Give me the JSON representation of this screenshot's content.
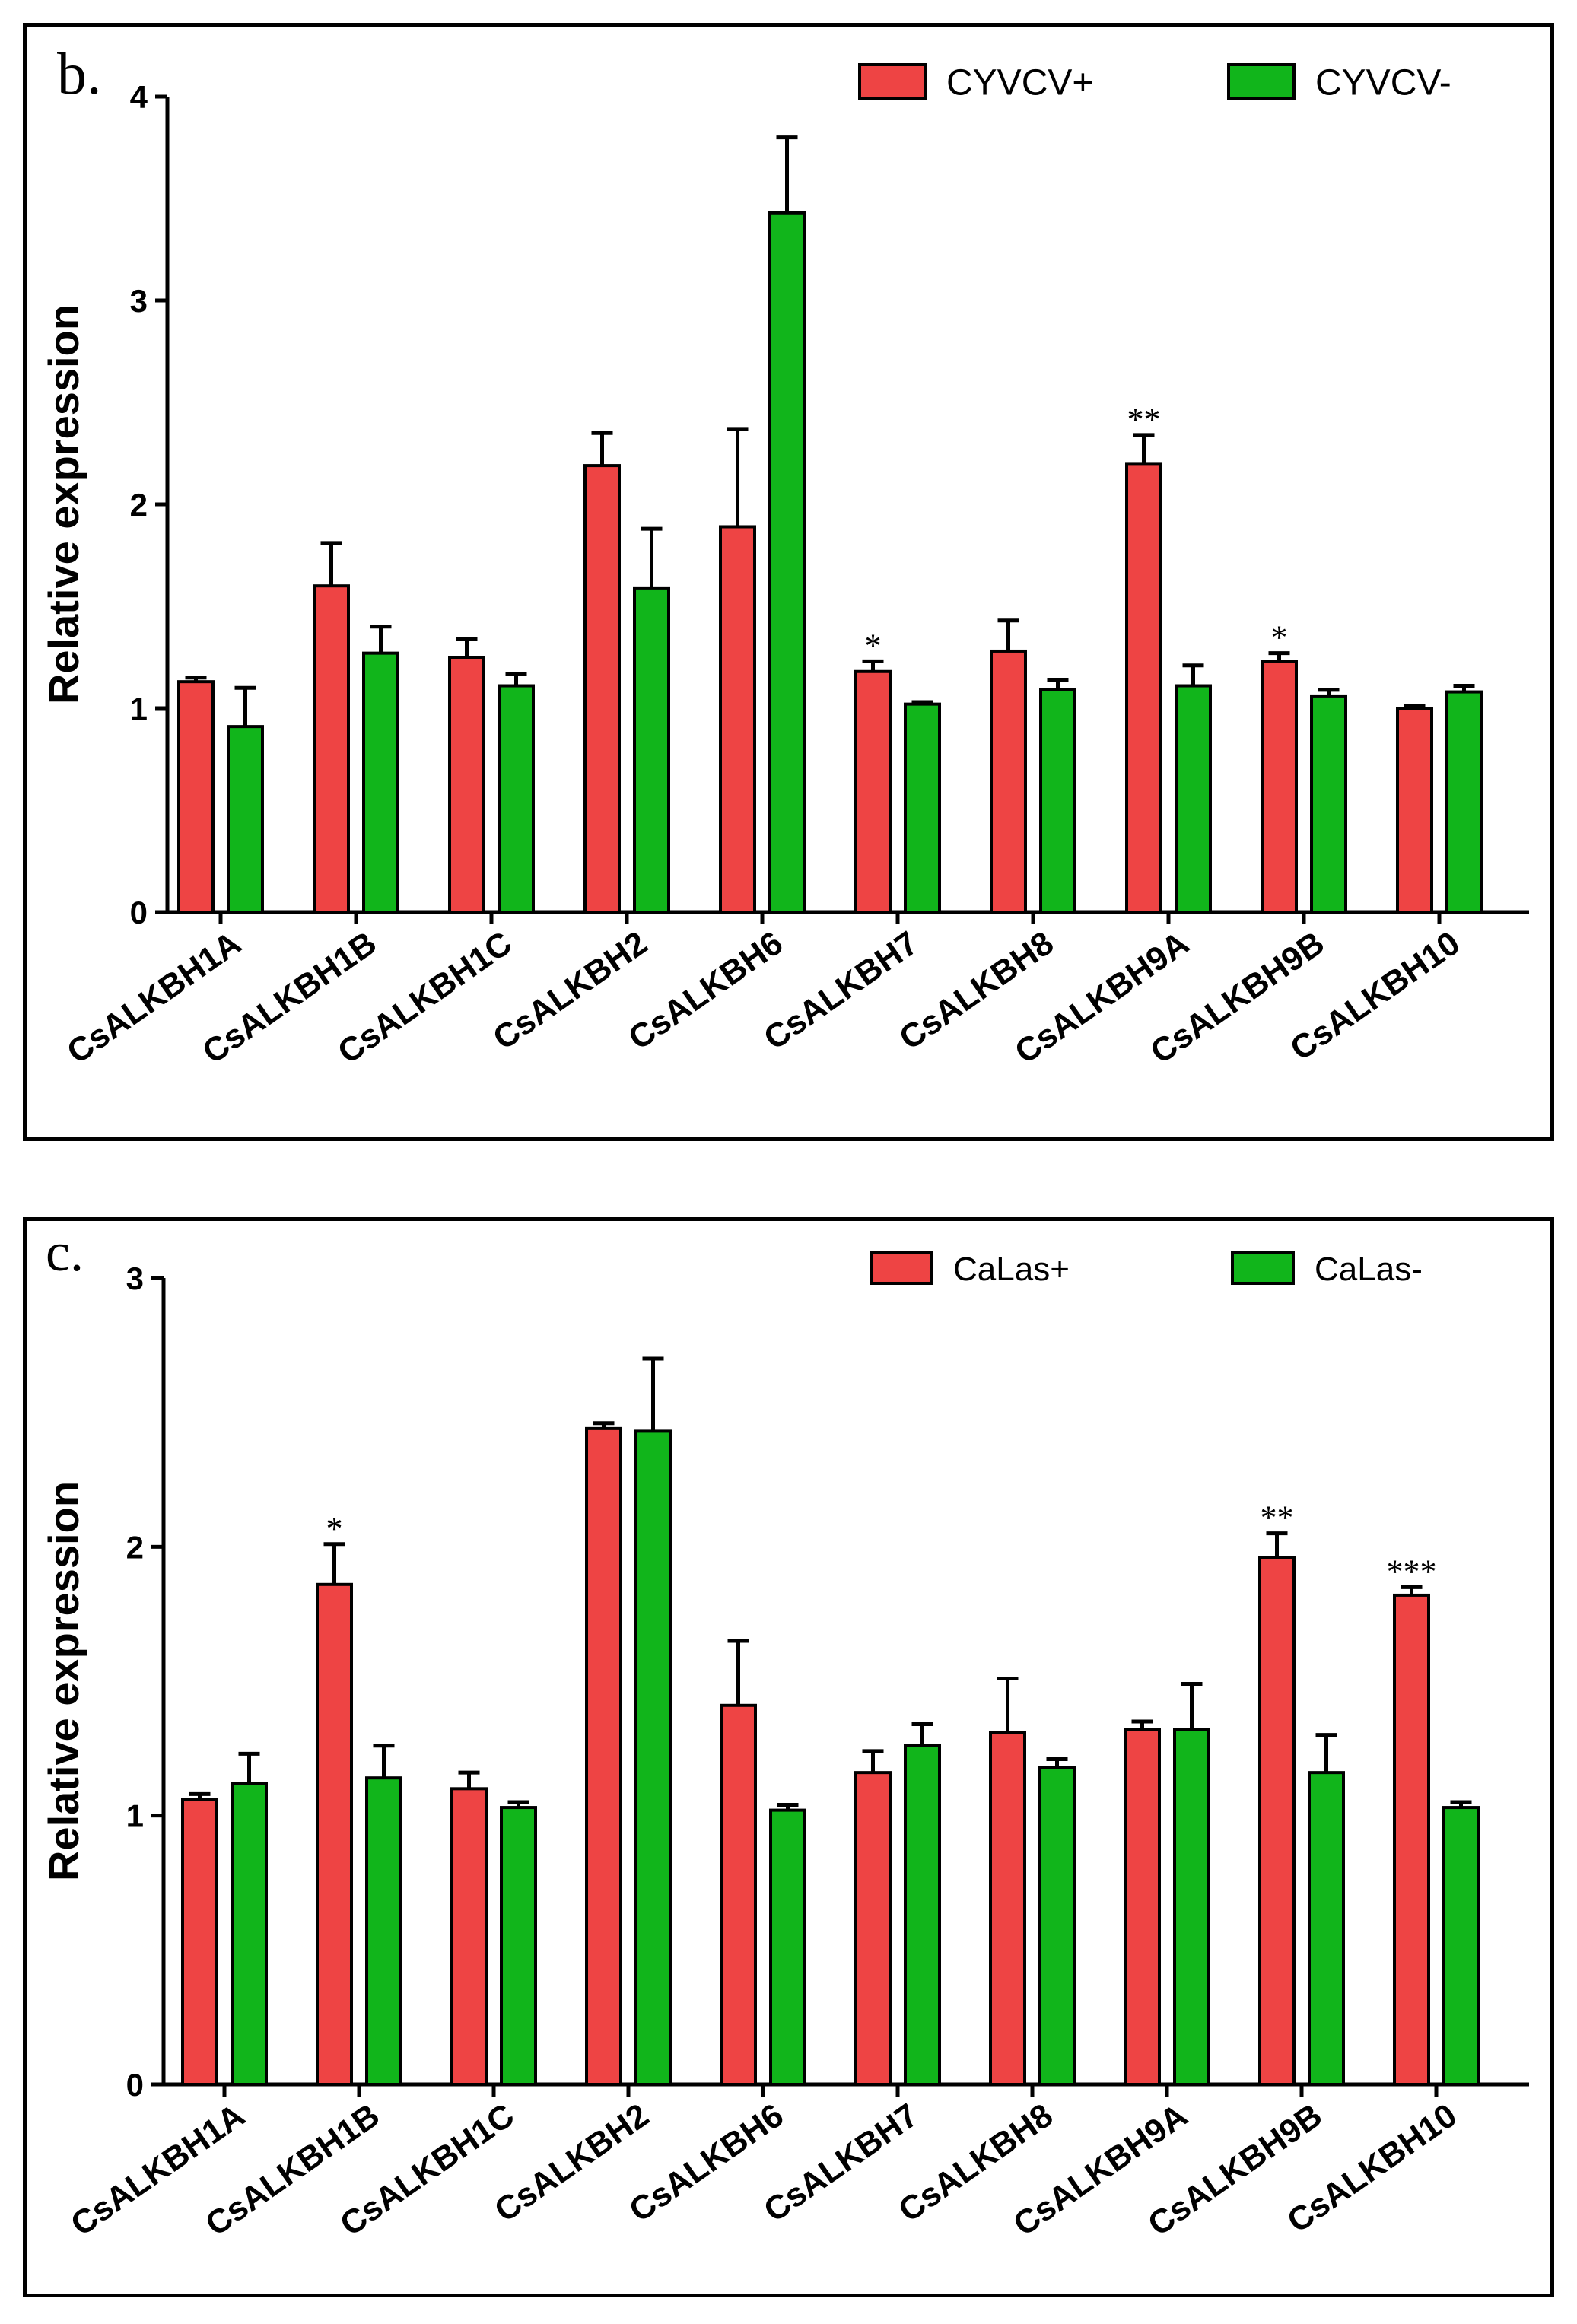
{
  "chart_data": [
    {
      "panel_label": "b.",
      "type": "bar",
      "ylabel": "Relative expression",
      "xlabel": "",
      "ylim": [
        0,
        4
      ],
      "yticks": [
        0,
        1,
        2,
        3,
        4
      ],
      "grid": false,
      "legend_position": "top-right",
      "categories": [
        "CsALKBH1A",
        "CsALKBH1B",
        "CsALKBH1C",
        "CsALKBH2",
        "CsALKBH6",
        "CsALKBH7",
        "CsALKBH8",
        "CsALKBH9A",
        "CsALKBH9B",
        "CsALKBH10"
      ],
      "series": [
        {
          "name": "CYVCV+",
          "color": "#ee4444",
          "values": [
            1.13,
            1.6,
            1.25,
            2.19,
            1.89,
            1.18,
            1.28,
            2.2,
            1.23,
            1.0
          ],
          "errors": [
            0.02,
            0.21,
            0.09,
            0.16,
            0.48,
            0.05,
            0.15,
            0.14,
            0.04,
            0.01
          ]
        },
        {
          "name": "CYVCV-",
          "color": "#11b51b",
          "values": [
            0.91,
            1.27,
            1.11,
            1.59,
            3.43,
            1.02,
            1.09,
            1.11,
            1.06,
            1.08
          ],
          "errors": [
            0.19,
            0.13,
            0.06,
            0.29,
            0.37,
            0.01,
            0.05,
            0.1,
            0.03,
            0.03
          ]
        }
      ],
      "annotations": [
        {
          "category_index": 5,
          "text": "*"
        },
        {
          "category_index": 7,
          "text": "**"
        },
        {
          "category_index": 8,
          "text": "*"
        }
      ]
    },
    {
      "panel_label": "c.",
      "type": "bar",
      "ylabel": "Relative expression",
      "xlabel": "",
      "ylim": [
        0,
        3
      ],
      "yticks": [
        0,
        1,
        2,
        3
      ],
      "grid": false,
      "legend_position": "top-right",
      "categories": [
        "CsALKBH1A",
        "CsALKBH1B",
        "CsALKBH1C",
        "CsALKBH2",
        "CsALKBH6",
        "CsALKBH7",
        "CsALKBH8",
        "CsALKBH9A",
        "CsALKBH9B",
        "CsALKBH10"
      ],
      "series": [
        {
          "name": "CaLas+",
          "color": "#ee4444",
          "values": [
            1.06,
            1.86,
            1.1,
            2.44,
            1.41,
            1.16,
            1.31,
            1.32,
            1.96,
            1.82
          ],
          "errors": [
            0.02,
            0.15,
            0.06,
            0.02,
            0.24,
            0.08,
            0.2,
            0.03,
            0.09,
            0.03
          ]
        },
        {
          "name": "CaLas-",
          "color": "#11b51b",
          "values": [
            1.12,
            1.14,
            1.03,
            2.43,
            1.02,
            1.26,
            1.18,
            1.32,
            1.16,
            1.03
          ],
          "errors": [
            0.11,
            0.12,
            0.02,
            0.27,
            0.02,
            0.08,
            0.03,
            0.17,
            0.14,
            0.02
          ]
        }
      ],
      "annotations": [
        {
          "category_index": 1,
          "text": "*"
        },
        {
          "category_index": 8,
          "text": "**"
        },
        {
          "category_index": 9,
          "text": "***"
        }
      ]
    }
  ]
}
